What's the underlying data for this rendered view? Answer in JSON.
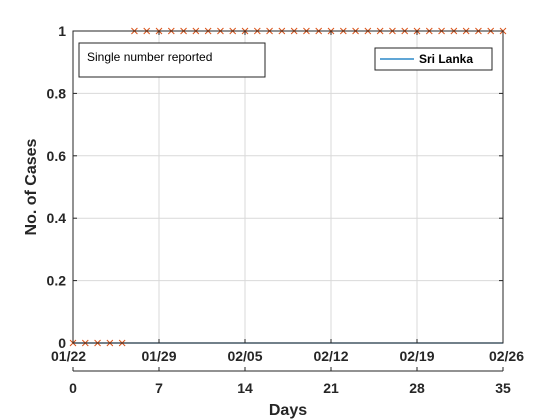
{
  "chart_data": {
    "type": "line",
    "title": "",
    "xlabel": "Days",
    "ylabel": "No. of Cases",
    "xlim": [
      0,
      35
    ],
    "ylim": [
      0,
      1
    ],
    "grid": true,
    "x_ticks": [
      0,
      7,
      14,
      21,
      28,
      35
    ],
    "x_tick_labels": [
      "0",
      "7",
      "14",
      "21",
      "28",
      "35"
    ],
    "date_ticks": [
      0,
      7,
      14,
      21,
      28,
      35
    ],
    "date_tick_labels": [
      "01/22",
      "01/29",
      "02/05",
      "02/12",
      "02/19",
      "02/26"
    ],
    "y_ticks": [
      0,
      0.2,
      0.4,
      0.6,
      0.8,
      1
    ],
    "y_tick_labels": [
      "0",
      "0.2",
      "0.4",
      "0.6",
      "0.8",
      "1"
    ],
    "legend": {
      "position": "top-right",
      "entries": [
        "Sri Lanka"
      ]
    },
    "annotation": "Single number reported",
    "series": [
      {
        "name": "Sri Lanka",
        "style": "line",
        "color": "#0072BD",
        "x": [
          0,
          35
        ],
        "y": [
          0,
          0
        ]
      },
      {
        "style": "markers",
        "marker": "x",
        "color": "#D95319",
        "x": [
          0,
          1,
          2,
          3,
          4,
          5,
          6,
          7,
          8,
          9,
          10,
          11,
          12,
          13,
          14,
          15,
          16,
          17,
          18,
          19,
          20,
          21,
          22,
          23,
          24,
          25,
          26,
          27,
          28,
          29,
          30,
          31,
          32,
          33,
          34,
          35
        ],
        "y": [
          0,
          0,
          0,
          0,
          0,
          1,
          1,
          1,
          1,
          1,
          1,
          1,
          1,
          1,
          1,
          1,
          1,
          1,
          1,
          1,
          1,
          1,
          1,
          1,
          1,
          1,
          1,
          1,
          1,
          1,
          1,
          1,
          1,
          1,
          1,
          1
        ]
      }
    ]
  }
}
